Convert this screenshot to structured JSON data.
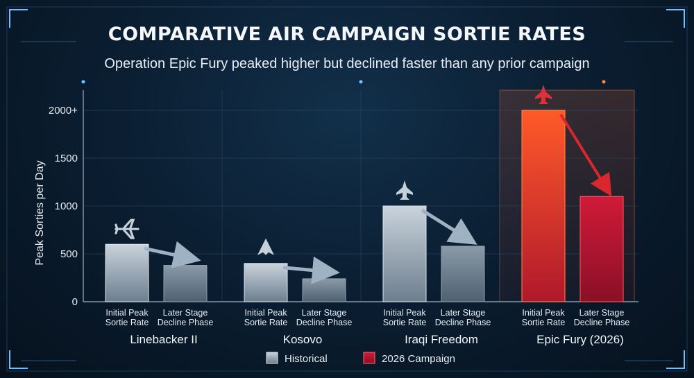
{
  "title": "COMPARATIVE AIR CAMPAIGN SORTIE RATES",
  "subtitle": "Operation Epic Fury peaked higher but declined faster than any prior campaign",
  "colors": {
    "historical": "#9fb0c0",
    "campaign2026": "#c81e3a",
    "background": "#0b1f33",
    "accent": "#2f8fd6"
  },
  "chart_data": {
    "type": "bar",
    "ylabel": "Peak Sorties per Day",
    "ylim": [
      0,
      2000
    ],
    "yticks": [
      "0",
      "500",
      "1000",
      "1500",
      "2000+"
    ],
    "yticks_values": [
      0,
      500,
      1000,
      1500,
      2000
    ],
    "bar_labels": [
      "Initial Peak Sortie Rate",
      "Later Stage Decline Phase"
    ],
    "groups": [
      {
        "name": "Linebacker II",
        "series": "Historical",
        "values": [
          600,
          380
        ],
        "icon": "bomber-icon"
      },
      {
        "name": "Kosovo",
        "series": "Historical",
        "values": [
          400,
          240
        ],
        "icon": "stealth-fighter-icon"
      },
      {
        "name": "Iraqi Freedom",
        "series": "Historical",
        "values": [
          1000,
          580
        ],
        "icon": "fighter-jet-icon"
      },
      {
        "name": "Epic Fury (2026)",
        "series": "2026 Campaign",
        "values": [
          2000,
          1100
        ],
        "icon": "fighter-jet-icon"
      }
    ],
    "legend": [
      {
        "name": "Historical",
        "color": "#9fb0c0"
      },
      {
        "name": "2026 Campaign",
        "color": "#c81e3a"
      }
    ],
    "legend_position": "bottom-center",
    "grid": true
  }
}
